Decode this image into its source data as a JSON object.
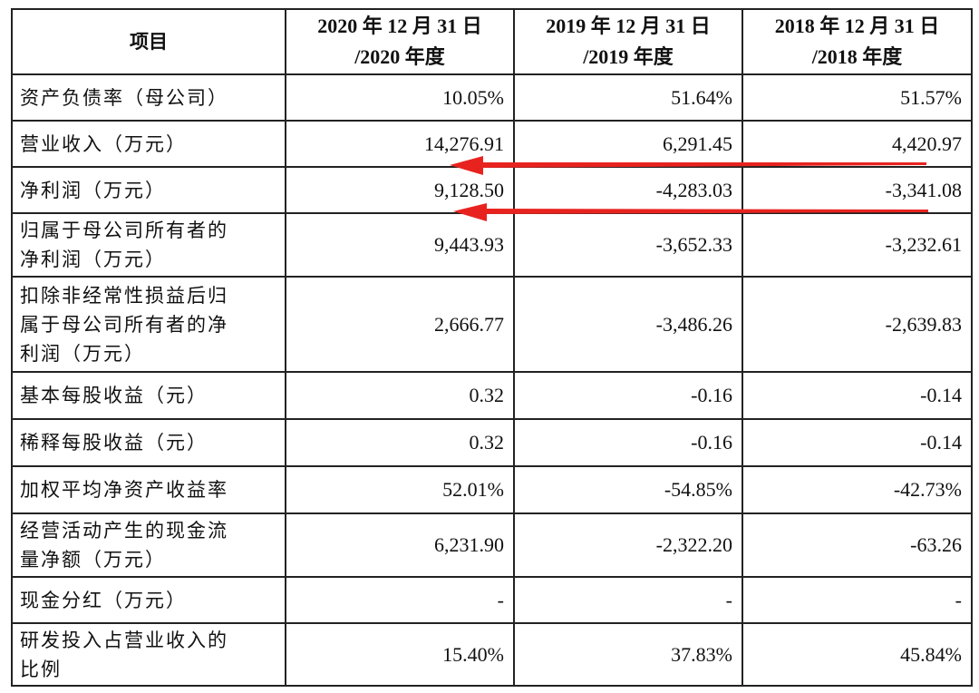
{
  "table": {
    "headers": [
      "项目",
      "2020 年 12 月 31 日\n/2020 年度",
      "2019 年 12 月 31 日\n/2019 年度",
      "2018 年 12 月 31 日\n/2018 年度"
    ],
    "rows": [
      {
        "label": "资产负债率（母公司）",
        "values": [
          "10.05%",
          "51.64%",
          "51.57%"
        ]
      },
      {
        "label": "营业收入（万元）",
        "values": [
          "14,276.91",
          "6,291.45",
          "4,420.97"
        ]
      },
      {
        "label": "净利润（万元）",
        "values": [
          "9,128.50",
          "-4,283.03",
          "-3,341.08"
        ]
      },
      {
        "label": "归属于母公司所有者的\n净利润（万元）",
        "values": [
          "9,443.93",
          "-3,652.33",
          "-3,232.61"
        ]
      },
      {
        "label": "扣除非经常性损益后归\n属于母公司所有者的净\n利润（万元）",
        "values": [
          "2,666.77",
          "-3,486.26",
          "-2,639.83"
        ]
      },
      {
        "label": "基本每股收益（元）",
        "values": [
          "0.32",
          "-0.16",
          "-0.14"
        ]
      },
      {
        "label": "稀释每股收益（元）",
        "values": [
          "0.32",
          "-0.16",
          "-0.14"
        ]
      },
      {
        "label": "加权平均净资产收益率",
        "values": [
          "52.01%",
          "-54.85%",
          "-42.73%"
        ]
      },
      {
        "label": "经营活动产生的现金流\n量净额（万元）",
        "values": [
          "6,231.90",
          "-2,322.20",
          "-63.26"
        ]
      },
      {
        "label": "现金分红（万元）",
        "values": [
          "-",
          "-",
          "-"
        ]
      },
      {
        "label": "研发投入占营业收入的\n比例",
        "values": [
          "15.40%",
          "37.83%",
          "45.84%"
        ]
      }
    ]
  },
  "annotations": {
    "arrow_color": "#e8231f",
    "arrows": [
      "revenue-row-arrow",
      "net-profit-row-arrow"
    ]
  }
}
